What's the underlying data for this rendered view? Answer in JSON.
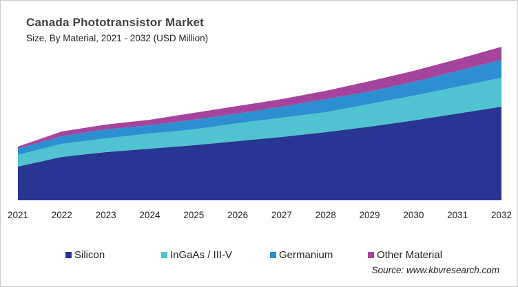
{
  "chart_data": {
    "type": "area",
    "stacked": true,
    "title": "Canada Phototransistor  Market",
    "subtitle": "Size, By Material, 2021 - 2032 (USD Million)",
    "note": "No y-axis shown; values are relative estimates read from band heights",
    "x": [
      "2021",
      "2022",
      "2023",
      "2024",
      "2025",
      "2026",
      "2027",
      "2028",
      "2029",
      "2030",
      "2031",
      "2032"
    ],
    "ylim": [
      0,
      250
    ],
    "grid": false,
    "legend_position": "bottom",
    "series": [
      {
        "name": "Silicon",
        "color": "#283593",
        "values": [
          49,
          63,
          70,
          75,
          80,
          86,
          92,
          99,
          107,
          116,
          126,
          136
        ]
      },
      {
        "name": "InGaAs / III-V",
        "color": "#4fc4d0",
        "values": [
          17,
          19,
          20,
          22,
          23,
          26,
          28,
          29,
          33,
          36,
          39,
          42
        ]
      },
      {
        "name": "Germanium",
        "color": "#2b8fd2",
        "values": [
          9,
          11,
          13,
          12,
          14,
          14,
          16,
          19,
          18,
          20,
          23,
          26
        ]
      },
      {
        "name": "Other Material",
        "color": "#a5449c",
        "values": [
          3,
          7,
          7,
          8,
          10,
          11,
          11,
          12,
          15,
          16,
          17,
          19
        ]
      }
    ],
    "source": "Source: www.kbvresearch.com"
  }
}
